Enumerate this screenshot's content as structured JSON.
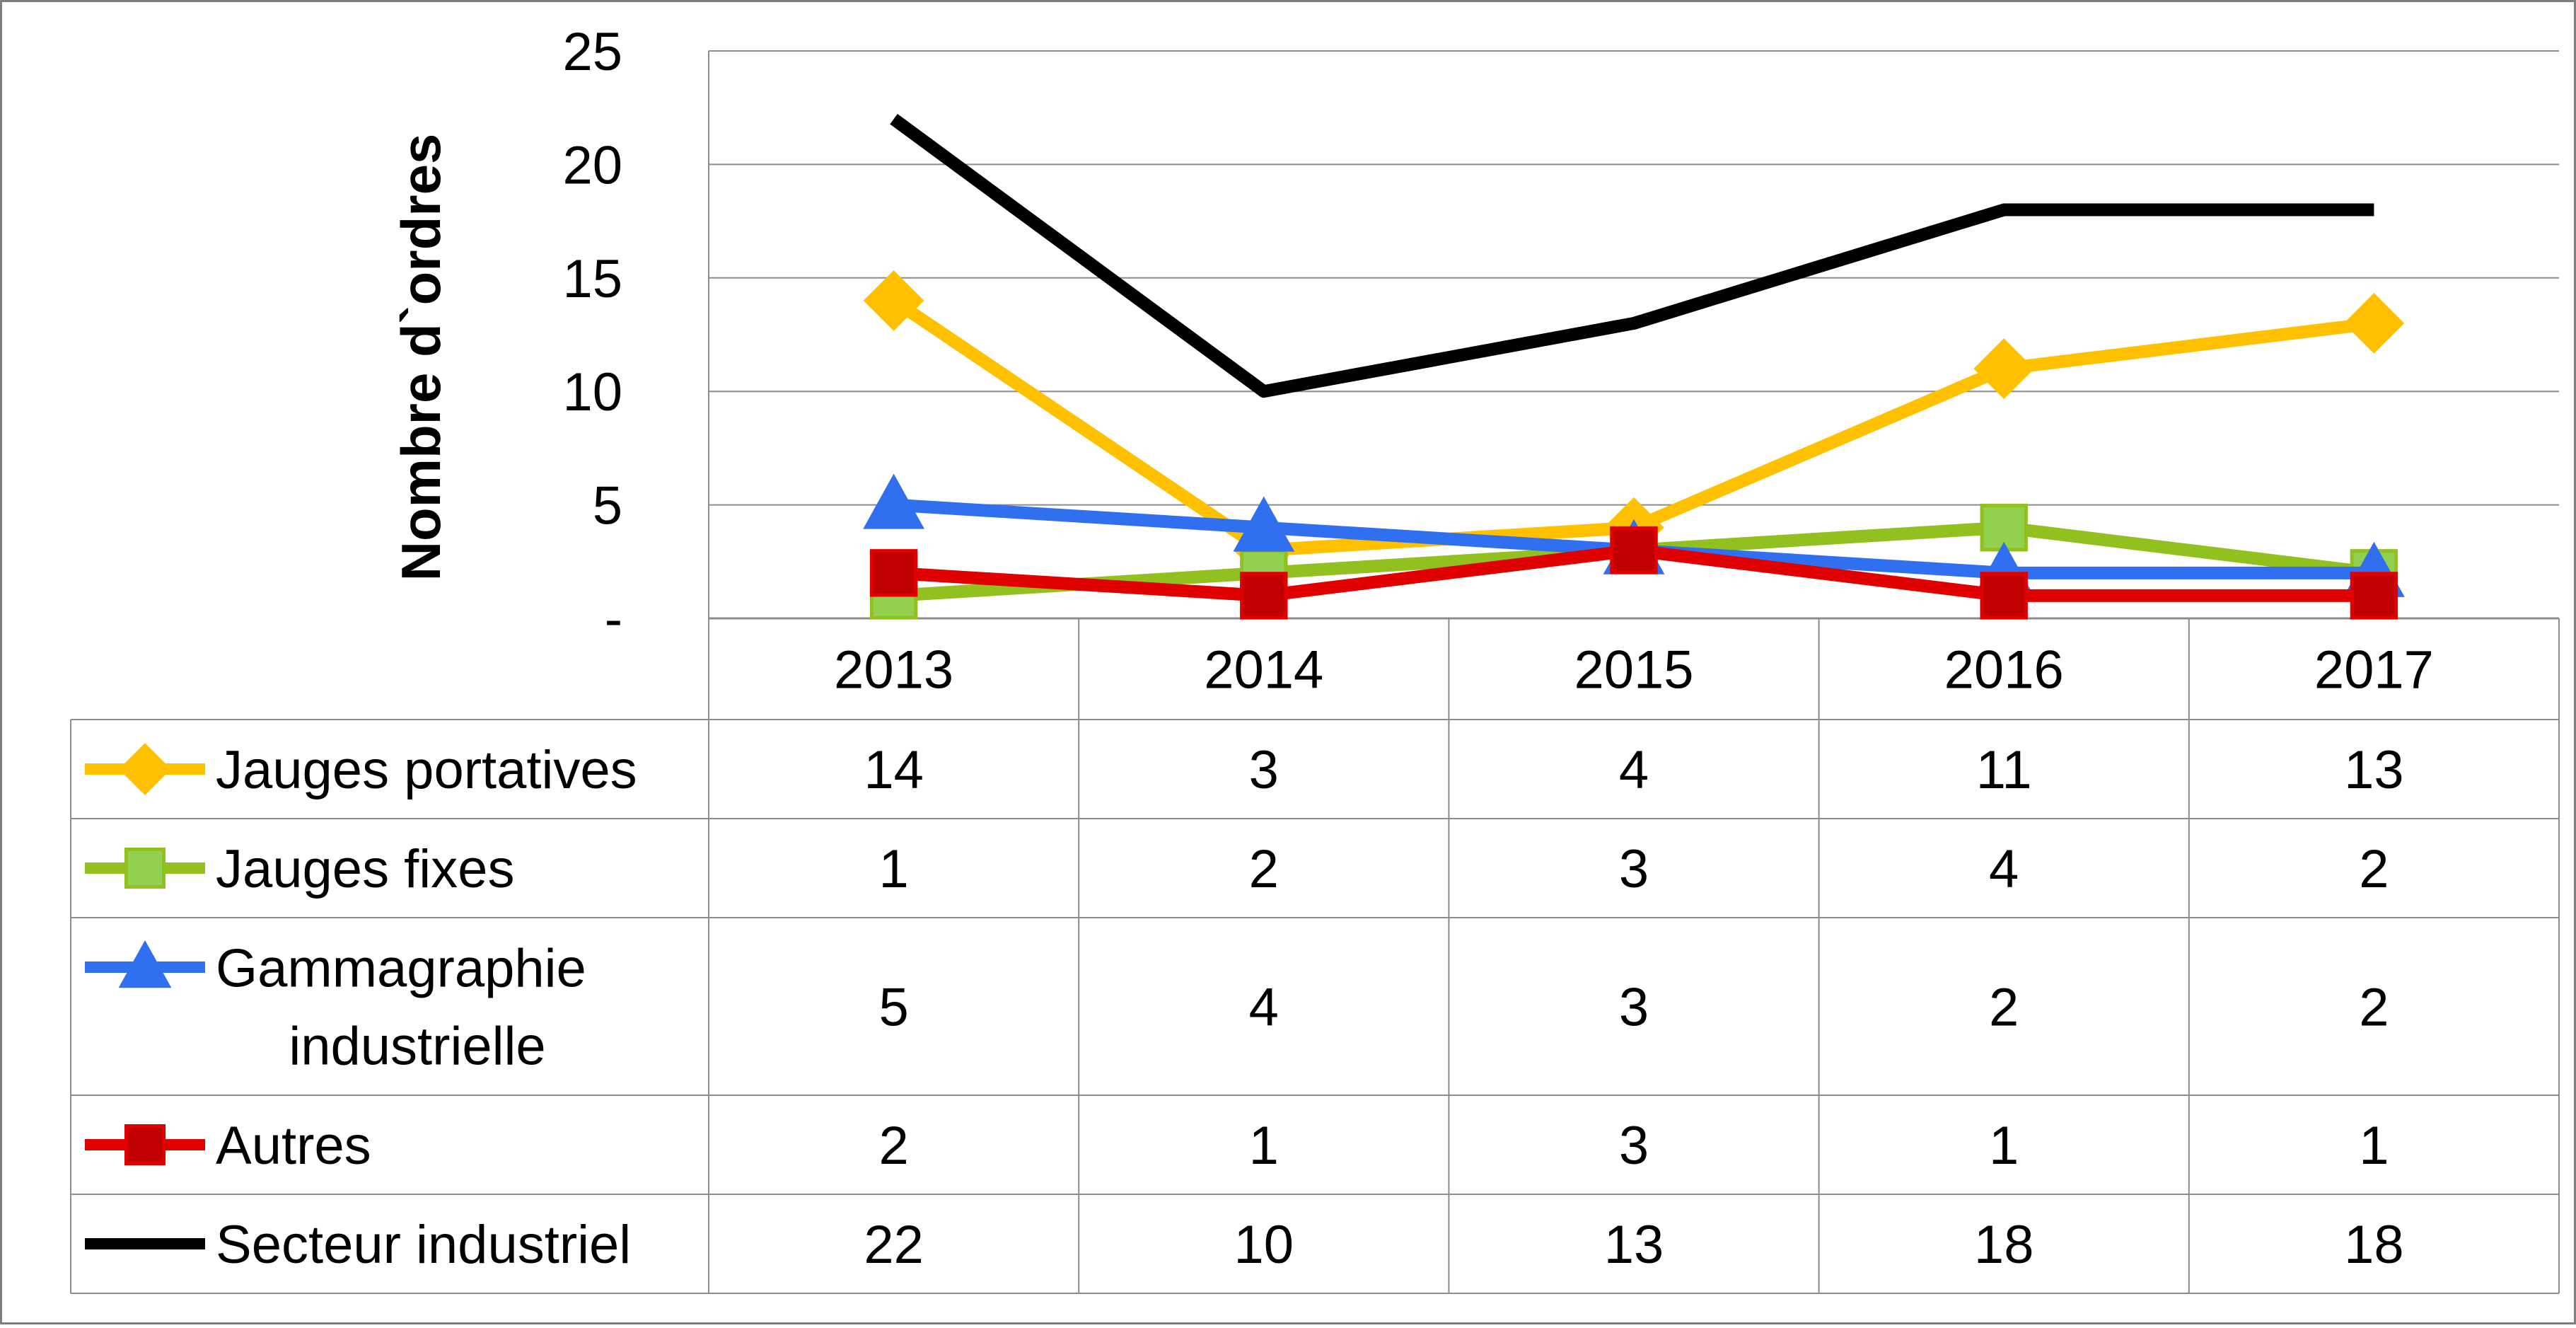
{
  "chart_data": {
    "type": "line",
    "title": "",
    "xlabel": "",
    "ylabel": "Nombre d`ordres",
    "categories": [
      "2013",
      "2014",
      "2015",
      "2016",
      "2017"
    ],
    "ylim": [
      0,
      25
    ],
    "yticks": [
      {
        "value": 0,
        "label": "-"
      },
      {
        "value": 5,
        "label": "5"
      },
      {
        "value": 10,
        "label": "10"
      },
      {
        "value": 15,
        "label": "15"
      },
      {
        "value": 20,
        "label": "20"
      },
      {
        "value": 25,
        "label": "25"
      }
    ],
    "grid": true,
    "legend": "data-table-below",
    "series": [
      {
        "name": "Jauges portatives",
        "label_lines": [
          "Jauges portatives"
        ],
        "values": [
          14,
          3,
          4,
          11,
          13
        ],
        "color": "#FFC000",
        "marker": "diamond"
      },
      {
        "name": "Jauges fixes",
        "label_lines": [
          "Jauges fixes"
        ],
        "values": [
          1,
          2,
          3,
          4,
          2
        ],
        "color": "#92C01F",
        "marker": "square",
        "marker_fill": "#92D050"
      },
      {
        "name": "Gammagraphie industrielle",
        "label_lines": [
          "Gammagraphie",
          "industrielle"
        ],
        "values": [
          5,
          4,
          3,
          2,
          2
        ],
        "color": "#3070F0",
        "marker": "triangle"
      },
      {
        "name": "Autres",
        "label_lines": [
          "Autres"
        ],
        "values": [
          2,
          1,
          3,
          1,
          1
        ],
        "color": "#E00000",
        "marker": "square",
        "marker_fill": "#C00000"
      },
      {
        "name": "Secteur industriel",
        "label_lines": [
          "Secteur industriel"
        ],
        "values": [
          22,
          10,
          13,
          18,
          18
        ],
        "color": "#000000",
        "marker": "none"
      }
    ]
  }
}
